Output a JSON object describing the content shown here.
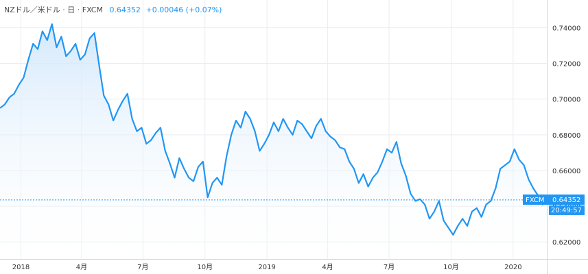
{
  "header": {
    "symbol": "NZドル／米ドル · 日 · FXCM",
    "price": "0.64352",
    "change": "+0.00046 (+0.07%)"
  },
  "price_badge": {
    "source": "FXCM",
    "price": "0.64352",
    "time": "20:49:57"
  },
  "colors": {
    "line": "#2196f3",
    "fill_top": "#cfe6fb",
    "grid": "#e9ecf0",
    "badge": "#2196f3"
  },
  "chart_data": {
    "type": "area",
    "title": "",
    "xlabel": "",
    "ylabel": "",
    "x_ticks": [
      {
        "date": "2018-01-01",
        "label": "2018"
      },
      {
        "date": "2018-04-01",
        "label": "4月"
      },
      {
        "date": "2018-07-01",
        "label": "7月"
      },
      {
        "date": "2018-10-01",
        "label": "10月"
      },
      {
        "date": "2019-01-01",
        "label": "2019"
      },
      {
        "date": "2019-04-01",
        "label": "4月"
      },
      {
        "date": "2019-07-01",
        "label": "7月"
      },
      {
        "date": "2019-10-01",
        "label": "10月"
      },
      {
        "date": "2020-01-01",
        "label": "2020"
      }
    ],
    "y_ticks": [
      "0.62000",
      "0.64000",
      "0.66000",
      "0.68000",
      "0.70000",
      "0.72000",
      "0.74000"
    ],
    "xlim": [
      "2017-12-01",
      "2020-02-20"
    ],
    "ylim": [
      0.6105,
      0.7555
    ],
    "last_value": 0.64352,
    "grid": true,
    "series": [
      {
        "x": [
          "2017-12-01",
          "2017-12-08",
          "2017-12-15",
          "2017-12-22",
          "2017-12-29",
          "2018-01-05",
          "2018-01-12",
          "2018-01-19",
          "2018-01-26",
          "2018-02-02",
          "2018-02-09",
          "2018-02-16",
          "2018-02-23",
          "2018-03-02",
          "2018-03-09",
          "2018-03-16",
          "2018-03-23",
          "2018-03-30",
          "2018-04-06",
          "2018-04-13",
          "2018-04-20",
          "2018-04-27",
          "2018-05-04",
          "2018-05-11",
          "2018-05-18",
          "2018-05-25",
          "2018-06-01",
          "2018-06-08",
          "2018-06-15",
          "2018-06-22",
          "2018-06-29",
          "2018-07-06",
          "2018-07-13",
          "2018-07-20",
          "2018-07-27",
          "2018-08-03",
          "2018-08-10",
          "2018-08-17",
          "2018-08-24",
          "2018-08-31",
          "2018-09-07",
          "2018-09-14",
          "2018-09-21",
          "2018-09-28",
          "2018-10-05",
          "2018-10-12",
          "2018-10-19",
          "2018-10-26",
          "2018-11-02",
          "2018-11-09",
          "2018-11-16",
          "2018-11-23",
          "2018-11-30",
          "2018-12-07",
          "2018-12-14",
          "2018-12-21",
          "2018-12-28",
          "2019-01-04",
          "2019-01-11",
          "2019-01-18",
          "2019-01-25",
          "2019-02-01",
          "2019-02-08",
          "2019-02-15",
          "2019-02-22",
          "2019-03-01",
          "2019-03-08",
          "2019-03-15",
          "2019-03-22",
          "2019-03-29",
          "2019-04-05",
          "2019-04-12",
          "2019-04-19",
          "2019-04-26",
          "2019-05-03",
          "2019-05-10",
          "2019-05-17",
          "2019-05-24",
          "2019-05-31",
          "2019-06-07",
          "2019-06-14",
          "2019-06-21",
          "2019-06-28",
          "2019-07-05",
          "2019-07-12",
          "2019-07-19",
          "2019-07-26",
          "2019-08-02",
          "2019-08-09",
          "2019-08-16",
          "2019-08-23",
          "2019-08-30",
          "2019-09-06",
          "2019-09-13",
          "2019-09-20",
          "2019-09-27",
          "2019-10-04",
          "2019-10-11",
          "2019-10-18",
          "2019-10-25",
          "2019-11-01",
          "2019-11-08",
          "2019-11-15",
          "2019-11-22",
          "2019-11-29",
          "2019-12-06",
          "2019-12-13",
          "2019-12-20",
          "2019-12-27",
          "2020-01-03",
          "2020-01-10",
          "2020-01-17",
          "2020-01-24",
          "2020-01-31",
          "2020-02-07",
          "2020-02-14",
          "2020-02-20"
        ],
        "y": [
          0.695,
          0.697,
          0.701,
          0.703,
          0.708,
          0.712,
          0.722,
          0.731,
          0.728,
          0.738,
          0.733,
          0.742,
          0.729,
          0.735,
          0.724,
          0.727,
          0.731,
          0.722,
          0.725,
          0.734,
          0.737,
          0.719,
          0.702,
          0.697,
          0.688,
          0.694,
          0.699,
          0.703,
          0.689,
          0.682,
          0.684,
          0.675,
          0.677,
          0.681,
          0.684,
          0.671,
          0.664,
          0.656,
          0.667,
          0.661,
          0.656,
          0.654,
          0.662,
          0.665,
          0.645,
          0.653,
          0.656,
          0.652,
          0.668,
          0.68,
          0.688,
          0.684,
          0.693,
          0.689,
          0.682,
          0.671,
          0.675,
          0.68,
          0.687,
          0.682,
          0.689,
          0.684,
          0.68,
          0.688,
          0.686,
          0.682,
          0.678,
          0.685,
          0.689,
          0.682,
          0.679,
          0.677,
          0.673,
          0.672,
          0.665,
          0.661,
          0.653,
          0.658,
          0.651,
          0.656,
          0.659,
          0.665,
          0.672,
          0.67,
          0.676,
          0.664,
          0.657,
          0.647,
          0.643,
          0.644,
          0.641,
          0.633,
          0.637,
          0.643,
          0.632,
          0.628,
          0.624,
          0.629,
          0.633,
          0.629,
          0.637,
          0.639,
          0.634,
          0.641,
          0.643,
          0.65,
          0.661,
          0.663,
          0.665,
          0.672,
          0.666,
          0.663,
          0.655,
          0.65,
          0.646,
          0.641,
          0.64352
        ]
      }
    ]
  }
}
